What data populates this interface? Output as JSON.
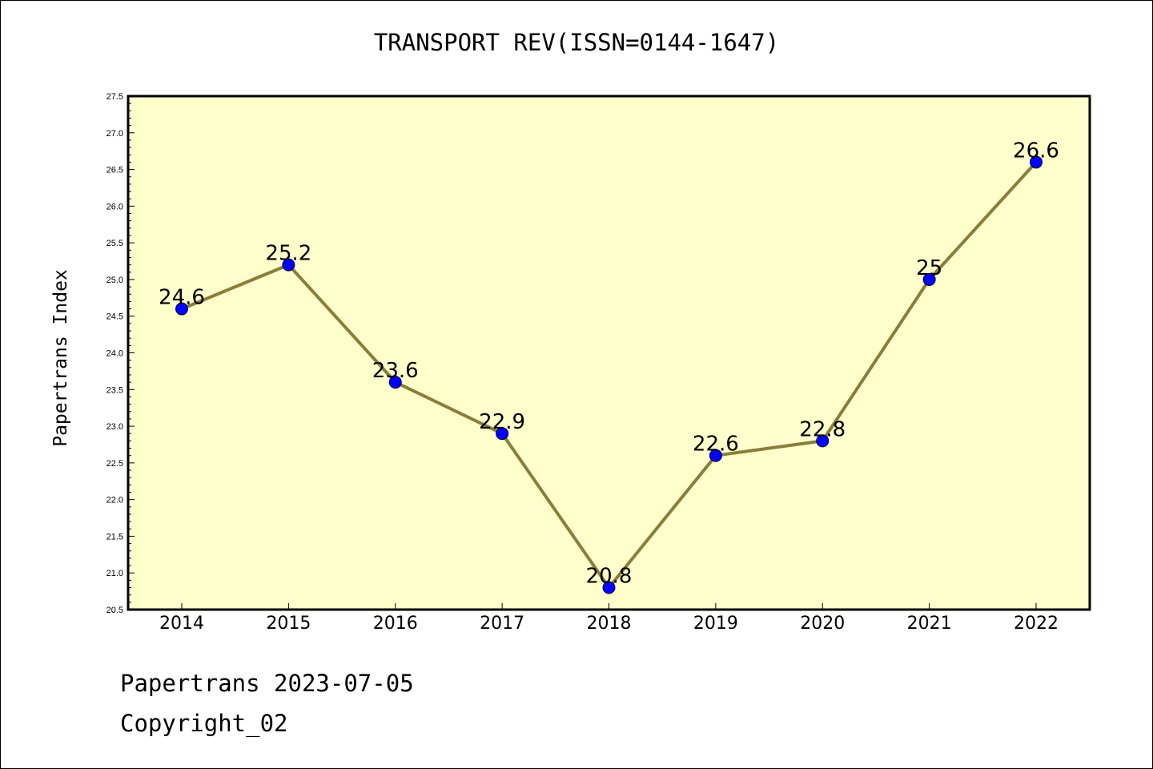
{
  "page": {
    "footer_line1": "Papertrans 2023-07-05",
    "footer_line2": "Copyright_02"
  },
  "chart_data": {
    "type": "line",
    "title": "TRANSPORT REV(ISSN=0144-1647)",
    "xlabel": "",
    "ylabel": "Papertrans Index",
    "categories": [
      "2014",
      "2015",
      "2016",
      "2017",
      "2018",
      "2019",
      "2020",
      "2021",
      "2022"
    ],
    "series": [
      {
        "values": [
          24.6,
          25.2,
          23.6,
          22.9,
          20.8,
          22.6,
          22.8,
          25,
          26.6
        ]
      }
    ],
    "data_labels": [
      "24.6",
      "25.2",
      "23.6",
      "22.9",
      "20.8",
      "22.6",
      "22.8",
      "25",
      "26.6"
    ],
    "ylim": [
      20.5,
      27.5
    ],
    "yticks": [
      "20.5",
      "21.0",
      "21.5",
      "22.0",
      "22.5",
      "23.0",
      "23.5",
      "24.0",
      "24.5",
      "25.0",
      "25.5",
      "26.0",
      "26.5",
      "27.0",
      "27.5"
    ],
    "grid": false,
    "legend": "none",
    "colors": {
      "plot_background": "#ffffcc",
      "line": "#8b7d3a",
      "marker": "#0000ff"
    }
  }
}
